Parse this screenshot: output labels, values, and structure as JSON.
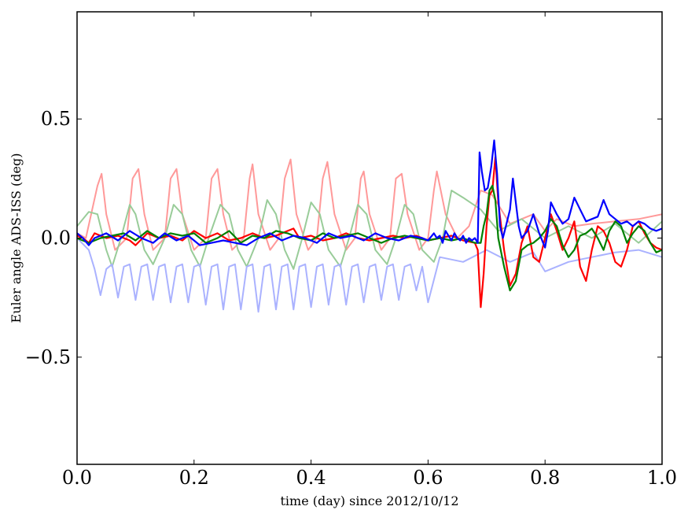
{
  "chart_data": {
    "type": "line",
    "title": "",
    "xlabel": "time (day) since 2012/10/12",
    "ylabel": "Euler angle ADS-ISS (deg)",
    "xlim": [
      0.0,
      1.0
    ],
    "ylim": [
      -0.95,
      0.95
    ],
    "x_ticks": [
      0.0,
      0.2,
      0.4,
      0.6,
      0.8,
      1.0
    ],
    "x_tick_labels": [
      "0.0",
      "0.2",
      "0.4",
      "0.6",
      "0.8",
      "1.0"
    ],
    "y_ticks": [
      0.5,
      0.0,
      -0.5
    ],
    "y_tick_labels": [
      "0.5",
      "0.0",
      "−0.5"
    ],
    "grid": false,
    "legend": "none",
    "series": [
      {
        "color": "#ff9999",
        "faded": true,
        "x": [
          0.0,
          0.015,
          0.035,
          0.042,
          0.05,
          0.065,
          0.085,
          0.095,
          0.105,
          0.115,
          0.13,
          0.15,
          0.16,
          0.17,
          0.18,
          0.2,
          0.22,
          0.23,
          0.24,
          0.25,
          0.265,
          0.285,
          0.295,
          0.3,
          0.31,
          0.33,
          0.345,
          0.355,
          0.365,
          0.375,
          0.395,
          0.41,
          0.42,
          0.428,
          0.44,
          0.46,
          0.475,
          0.485,
          0.49,
          0.5,
          0.52,
          0.535,
          0.545,
          0.555,
          0.565,
          0.585,
          0.6,
          0.61,
          0.615,
          0.63,
          0.65,
          0.67,
          0.69,
          0.71,
          0.74,
          0.78,
          0.8,
          0.82,
          0.85,
          0.88,
          0.92,
          0.96,
          1.0
        ],
        "y": [
          0.02,
          0.0,
          0.22,
          0.27,
          0.1,
          -0.05,
          0.0,
          0.25,
          0.29,
          0.1,
          -0.05,
          0.0,
          0.25,
          0.29,
          0.1,
          -0.05,
          0.0,
          0.25,
          0.29,
          0.1,
          -0.05,
          0.0,
          0.25,
          0.31,
          0.1,
          -0.05,
          0.0,
          0.25,
          0.33,
          0.1,
          -0.05,
          0.0,
          0.25,
          0.32,
          0.1,
          -0.05,
          0.0,
          0.25,
          0.28,
          0.1,
          -0.05,
          0.0,
          0.25,
          0.27,
          0.1,
          -0.05,
          0.0,
          0.2,
          0.28,
          0.1,
          0.0,
          0.05,
          0.2,
          0.18,
          0.06,
          0.1,
          0.03,
          0.08,
          0.05,
          0.06,
          0.07,
          0.08,
          0.1
        ]
      },
      {
        "color": "#99cc99",
        "faded": true,
        "x": [
          0.0,
          0.02,
          0.035,
          0.05,
          0.06,
          0.075,
          0.09,
          0.1,
          0.115,
          0.13,
          0.15,
          0.165,
          0.18,
          0.195,
          0.21,
          0.225,
          0.245,
          0.26,
          0.275,
          0.29,
          0.31,
          0.325,
          0.34,
          0.355,
          0.37,
          0.385,
          0.4,
          0.415,
          0.43,
          0.45,
          0.465,
          0.48,
          0.495,
          0.51,
          0.53,
          0.545,
          0.56,
          0.575,
          0.59,
          0.61,
          0.625,
          0.64,
          0.66,
          0.69,
          0.72,
          0.76,
          0.8,
          0.84,
          0.88,
          0.92,
          0.96,
          1.0
        ],
        "y": [
          0.05,
          0.11,
          0.1,
          -0.05,
          -0.12,
          0.0,
          0.14,
          0.1,
          -0.05,
          -0.11,
          0.0,
          0.14,
          0.1,
          -0.05,
          -0.12,
          0.0,
          0.14,
          0.1,
          -0.05,
          -0.12,
          0.0,
          0.16,
          0.1,
          -0.05,
          -0.13,
          0.0,
          0.15,
          0.1,
          -0.05,
          -0.12,
          0.0,
          0.14,
          0.1,
          -0.05,
          -0.11,
          0.0,
          0.14,
          0.1,
          -0.05,
          -0.1,
          0.0,
          0.2,
          0.17,
          0.12,
          0.03,
          0.08,
          0.0,
          0.05,
          0.0,
          0.06,
          -0.02,
          0.07
        ]
      },
      {
        "color": "#aab2ff",
        "faded": true,
        "x": [
          0.0,
          0.02,
          0.03,
          0.04,
          0.05,
          0.06,
          0.07,
          0.08,
          0.09,
          0.1,
          0.11,
          0.12,
          0.13,
          0.14,
          0.15,
          0.16,
          0.17,
          0.18,
          0.19,
          0.2,
          0.21,
          0.22,
          0.23,
          0.24,
          0.25,
          0.26,
          0.27,
          0.28,
          0.29,
          0.3,
          0.31,
          0.32,
          0.33,
          0.34,
          0.35,
          0.36,
          0.37,
          0.38,
          0.39,
          0.4,
          0.41,
          0.42,
          0.43,
          0.44,
          0.45,
          0.46,
          0.47,
          0.48,
          0.49,
          0.5,
          0.51,
          0.52,
          0.53,
          0.54,
          0.55,
          0.56,
          0.57,
          0.58,
          0.59,
          0.6,
          0.62,
          0.66,
          0.7,
          0.74,
          0.78,
          0.8,
          0.84,
          0.88,
          0.92,
          0.96,
          1.0
        ],
        "y": [
          0.0,
          -0.05,
          -0.13,
          -0.24,
          -0.13,
          -0.11,
          -0.25,
          -0.12,
          -0.11,
          -0.26,
          -0.12,
          -0.11,
          -0.26,
          -0.12,
          -0.11,
          -0.27,
          -0.12,
          -0.11,
          -0.27,
          -0.12,
          -0.11,
          -0.28,
          -0.12,
          -0.11,
          -0.3,
          -0.12,
          -0.11,
          -0.3,
          -0.12,
          -0.11,
          -0.31,
          -0.12,
          -0.11,
          -0.3,
          -0.12,
          -0.11,
          -0.3,
          -0.12,
          -0.11,
          -0.29,
          -0.12,
          -0.11,
          -0.28,
          -0.12,
          -0.11,
          -0.28,
          -0.12,
          -0.11,
          -0.27,
          -0.12,
          -0.11,
          -0.26,
          -0.12,
          -0.11,
          -0.26,
          -0.12,
          -0.11,
          -0.22,
          -0.12,
          -0.27,
          -0.08,
          -0.1,
          -0.05,
          -0.1,
          -0.06,
          -0.14,
          -0.1,
          -0.08,
          -0.06,
          -0.05,
          -0.08
        ]
      },
      {
        "color": "#ff0000",
        "faded": false,
        "x": [
          0.0,
          0.01,
          0.02,
          0.03,
          0.05,
          0.07,
          0.09,
          0.1,
          0.12,
          0.14,
          0.16,
          0.18,
          0.2,
          0.22,
          0.24,
          0.26,
          0.28,
          0.3,
          0.32,
          0.34,
          0.36,
          0.37,
          0.38,
          0.4,
          0.42,
          0.44,
          0.46,
          0.48,
          0.5,
          0.52,
          0.54,
          0.56,
          0.58,
          0.6,
          0.62,
          0.64,
          0.66,
          0.68,
          0.685,
          0.69,
          0.695,
          0.7,
          0.705,
          0.71,
          0.715,
          0.72,
          0.73,
          0.74,
          0.75,
          0.76,
          0.77,
          0.78,
          0.79,
          0.8,
          0.81,
          0.82,
          0.83,
          0.84,
          0.85,
          0.86,
          0.87,
          0.88,
          0.89,
          0.9,
          0.91,
          0.92,
          0.93,
          0.94,
          0.95,
          0.96,
          0.97,
          0.98,
          0.99,
          1.0
        ],
        "y": [
          0.01,
          0.0,
          -0.02,
          0.02,
          0.0,
          0.01,
          -0.01,
          -0.03,
          0.02,
          0.0,
          0.01,
          -0.01,
          0.03,
          0.0,
          0.02,
          -0.01,
          0.0,
          0.02,
          0.0,
          0.01,
          0.03,
          0.04,
          0.0,
          0.01,
          -0.01,
          0.0,
          0.02,
          0.0,
          -0.01,
          0.0,
          0.01,
          0.0,
          0.01,
          -0.01,
          0.0,
          0.01,
          -0.01,
          -0.02,
          -0.05,
          -0.29,
          -0.15,
          0.05,
          0.18,
          0.2,
          0.34,
          0.15,
          -0.05,
          -0.2,
          -0.15,
          -0.02,
          0.05,
          -0.08,
          -0.1,
          0.0,
          0.1,
          0.03,
          -0.05,
          0.0,
          0.07,
          -0.12,
          -0.18,
          -0.05,
          0.05,
          0.03,
          -0.02,
          -0.1,
          -0.12,
          -0.05,
          0.05,
          0.07,
          0.02,
          -0.02,
          -0.04,
          -0.05
        ]
      },
      {
        "color": "#008000",
        "faded": false,
        "x": [
          0.0,
          0.02,
          0.04,
          0.06,
          0.08,
          0.1,
          0.12,
          0.14,
          0.16,
          0.18,
          0.2,
          0.22,
          0.24,
          0.26,
          0.28,
          0.3,
          0.32,
          0.34,
          0.36,
          0.38,
          0.4,
          0.42,
          0.44,
          0.46,
          0.48,
          0.5,
          0.52,
          0.54,
          0.56,
          0.58,
          0.6,
          0.62,
          0.64,
          0.66,
          0.68,
          0.69,
          0.695,
          0.7,
          0.705,
          0.71,
          0.715,
          0.72,
          0.73,
          0.74,
          0.75,
          0.76,
          0.77,
          0.78,
          0.79,
          0.8,
          0.81,
          0.82,
          0.83,
          0.84,
          0.85,
          0.86,
          0.87,
          0.88,
          0.89,
          0.9,
          0.91,
          0.92,
          0.93,
          0.94,
          0.95,
          0.96,
          0.97,
          0.98,
          0.99,
          1.0
        ],
        "y": [
          0.0,
          -0.02,
          0.0,
          0.01,
          0.02,
          -0.01,
          0.03,
          0.0,
          0.02,
          0.01,
          0.02,
          -0.02,
          0.0,
          0.03,
          -0.02,
          0.01,
          0.0,
          0.03,
          0.02,
          0.0,
          -0.01,
          0.02,
          0.0,
          0.01,
          0.02,
          0.0,
          -0.02,
          0.0,
          0.01,
          0.0,
          -0.01,
          0.0,
          -0.01,
          0.0,
          -0.02,
          -0.02,
          0.05,
          0.1,
          0.2,
          0.22,
          0.16,
          0.0,
          -0.12,
          -0.22,
          -0.18,
          -0.05,
          -0.03,
          -0.02,
          0.0,
          0.03,
          0.08,
          0.05,
          -0.03,
          -0.08,
          -0.05,
          0.01,
          0.02,
          0.04,
          0.0,
          -0.05,
          0.03,
          0.07,
          0.05,
          -0.02,
          0.02,
          0.05,
          0.03,
          -0.02,
          -0.06,
          -0.05
        ]
      },
      {
        "color": "#0000ff",
        "faded": false,
        "x": [
          0.0,
          0.01,
          0.02,
          0.03,
          0.05,
          0.07,
          0.09,
          0.11,
          0.13,
          0.15,
          0.17,
          0.19,
          0.21,
          0.23,
          0.25,
          0.27,
          0.29,
          0.31,
          0.33,
          0.35,
          0.37,
          0.39,
          0.41,
          0.43,
          0.45,
          0.47,
          0.49,
          0.51,
          0.53,
          0.55,
          0.57,
          0.59,
          0.6,
          0.61,
          0.615,
          0.62,
          0.625,
          0.63,
          0.635,
          0.64,
          0.645,
          0.65,
          0.655,
          0.66,
          0.665,
          0.67,
          0.675,
          0.68,
          0.685,
          0.688,
          0.692,
          0.697,
          0.702,
          0.708,
          0.713,
          0.718,
          0.723,
          0.728,
          0.733,
          0.74,
          0.745,
          0.75,
          0.755,
          0.76,
          0.77,
          0.78,
          0.785,
          0.79,
          0.8,
          0.805,
          0.81,
          0.82,
          0.83,
          0.84,
          0.85,
          0.86,
          0.87,
          0.88,
          0.89,
          0.9,
          0.91,
          0.92,
          0.93,
          0.94,
          0.95,
          0.96,
          0.97,
          0.98,
          0.99,
          1.0
        ],
        "y": [
          0.02,
          0.0,
          -0.03,
          0.0,
          0.02,
          -0.01,
          0.03,
          0.0,
          -0.02,
          0.02,
          -0.01,
          0.01,
          -0.03,
          -0.02,
          -0.01,
          -0.02,
          -0.03,
          0.0,
          0.02,
          -0.01,
          0.01,
          0.0,
          -0.02,
          0.02,
          0.0,
          0.01,
          -0.01,
          0.02,
          0.0,
          -0.01,
          0.01,
          0.0,
          -0.01,
          0.02,
          0.0,
          0.01,
          -0.02,
          0.03,
          0.01,
          -0.01,
          0.02,
          0.0,
          -0.01,
          0.01,
          -0.02,
          0.0,
          -0.01,
          0.0,
          -0.02,
          0.36,
          0.28,
          0.2,
          0.21,
          0.3,
          0.41,
          0.27,
          0.05,
          0.0,
          0.05,
          0.12,
          0.25,
          0.15,
          0.05,
          0.0,
          0.03,
          0.1,
          0.06,
          0.02,
          -0.04,
          0.03,
          0.15,
          0.1,
          0.06,
          0.08,
          0.17,
          0.12,
          0.07,
          0.08,
          0.09,
          0.16,
          0.1,
          0.08,
          0.06,
          0.07,
          0.05,
          0.07,
          0.06,
          0.04,
          0.03,
          0.04
        ]
      }
    ]
  }
}
